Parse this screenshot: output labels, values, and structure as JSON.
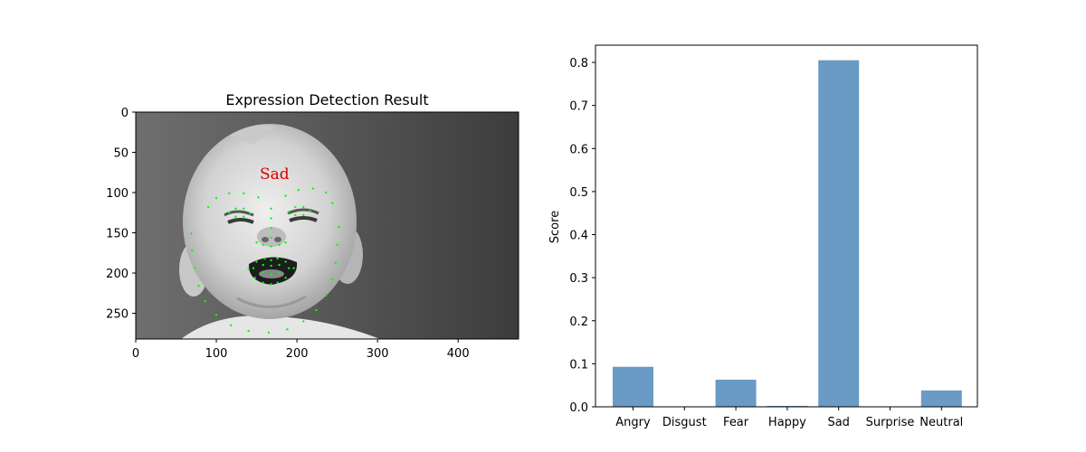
{
  "chart_data": [
    {
      "type": "image",
      "title": "Expression Detection Result",
      "overlay_label": "Sad",
      "overlay_label_color": "#d40000",
      "landmark_color": "#00ff00",
      "x_range": [
        0,
        475
      ],
      "y_range": [
        282,
        0
      ],
      "x_ticks": [
        0,
        100,
        200,
        300,
        400
      ],
      "y_ticks": [
        0,
        50,
        100,
        150,
        200,
        250
      ],
      "grid": false
    },
    {
      "type": "bar",
      "categories": [
        "Angry",
        "Disgust",
        "Fear",
        "Happy",
        "Sad",
        "Surprise",
        "Neutral"
      ],
      "values": [
        0.093,
        0.0,
        0.063,
        0.002,
        0.805,
        0.0,
        0.038
      ],
      "title": "",
      "xlabel": "",
      "ylabel": "Score",
      "ylim": [
        0,
        0.84
      ],
      "y_ticks": [
        0.0,
        0.1,
        0.2,
        0.3,
        0.4,
        0.5,
        0.6,
        0.7,
        0.8
      ],
      "bar_color": "#6a9bc5",
      "grid": false
    }
  ]
}
